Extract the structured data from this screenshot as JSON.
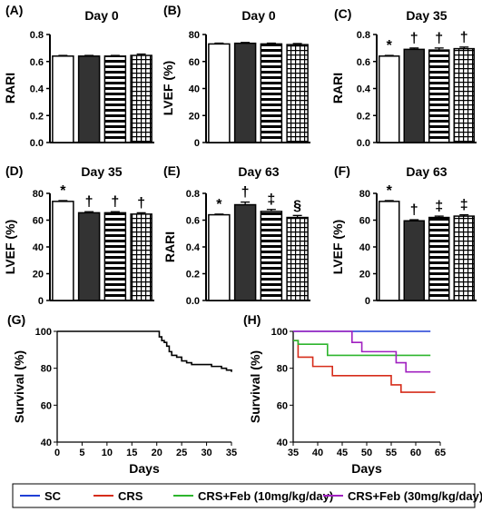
{
  "group_order": [
    "SC",
    "CRS",
    "CRS+Feb (10mg/kg/day)",
    "CRS+Feb (30mg/kg/day)"
  ],
  "group_fill_patterns": [
    "white",
    "dark",
    "horizontal-stripes",
    "grid"
  ],
  "bar_dark_color": "#333333",
  "chart_data": [
    {
      "type": "bar",
      "panel": "(A)",
      "title": "Day 0",
      "ylabel": "RARI",
      "ylim": [
        0,
        0.8
      ],
      "yticks": [
        "0.0",
        "0.2",
        "0.4",
        "0.6",
        "0.8"
      ],
      "values": [
        0.64,
        0.64,
        0.64,
        0.645
      ],
      "errors": [
        0.005,
        0.005,
        0.005,
        0.01
      ],
      "markers": [
        "",
        "",
        "",
        ""
      ]
    },
    {
      "type": "bar",
      "panel": "(B)",
      "title": "Day 0",
      "ylabel": "LVEF (%)",
      "ylim": [
        0,
        80
      ],
      "yticks": [
        "0",
        "20",
        "40",
        "60",
        "80"
      ],
      "values": [
        73,
        73.5,
        73,
        72.5
      ],
      "errors": [
        0.6,
        0.6,
        0.6,
        0.8
      ],
      "markers": [
        "",
        "",
        "",
        ""
      ]
    },
    {
      "type": "bar",
      "panel": "(C)",
      "title": "Day 35",
      "ylabel": "RARI",
      "ylim": [
        0,
        0.8
      ],
      "yticks": [
        "0.0",
        "0.2",
        "0.4",
        "0.6",
        "0.8"
      ],
      "values": [
        0.64,
        0.69,
        0.685,
        0.695
      ],
      "errors": [
        0.005,
        0.01,
        0.015,
        0.012
      ],
      "markers": [
        "*",
        "†",
        "†",
        "†"
      ]
    },
    {
      "type": "bar",
      "panel": "(D)",
      "title": "Day 35",
      "ylabel": "LVEF (%)",
      "ylim": [
        0,
        80
      ],
      "yticks": [
        "0",
        "20",
        "40",
        "60",
        "80"
      ],
      "values": [
        74,
        65.5,
        65.5,
        64.5
      ],
      "errors": [
        0.6,
        0.8,
        0.8,
        1.0
      ],
      "markers": [
        "*",
        "†",
        "†",
        "†"
      ]
    },
    {
      "type": "bar",
      "panel": "(E)",
      "title": "Day 63",
      "ylabel": "RARI",
      "ylim": [
        0,
        0.8
      ],
      "yticks": [
        "0.0",
        "0.2",
        "0.4",
        "0.6",
        "0.8"
      ],
      "values": [
        0.64,
        0.715,
        0.665,
        0.62
      ],
      "errors": [
        0.005,
        0.02,
        0.015,
        0.015
      ],
      "markers": [
        "*",
        "†",
        "‡",
        "§"
      ]
    },
    {
      "type": "bar",
      "panel": "(F)",
      "title": "Day 63",
      "ylabel": "LVEF (%)",
      "ylim": [
        0,
        80
      ],
      "yticks": [
        "0",
        "20",
        "40",
        "60",
        "80"
      ],
      "values": [
        74,
        59.5,
        62,
        63
      ],
      "errors": [
        0.6,
        0.8,
        1.0,
        1.0
      ],
      "markers": [
        "*",
        "†",
        "‡",
        "‡"
      ]
    },
    {
      "type": "line",
      "panel": "(G)",
      "title": "",
      "xlabel": "Days",
      "ylabel": "Survival (%)",
      "xlim": [
        0,
        35
      ],
      "ylim": [
        40,
        100
      ],
      "xticks": [
        "0",
        "5",
        "10",
        "15",
        "20",
        "25",
        "30",
        "35"
      ],
      "yticks": [
        "40",
        "60",
        "80",
        "100"
      ],
      "series": [
        {
          "step": true,
          "x": [
            0,
            20,
            20.5,
            21,
            21.5,
            22,
            22.5,
            23,
            24,
            25,
            26,
            27,
            28,
            31,
            33,
            34,
            35
          ],
          "y": [
            100,
            100,
            97,
            95,
            94,
            92,
            89,
            87,
            86,
            84,
            83,
            82,
            82,
            81,
            80,
            79,
            78
          ]
        }
      ]
    },
    {
      "type": "line",
      "panel": "(H)",
      "title": "",
      "xlabel": "Days",
      "ylabel": "Survival (%)",
      "xlim": [
        35,
        65
      ],
      "ylim": [
        40,
        100
      ],
      "xticks": [
        "35",
        "40",
        "45",
        "50",
        "55",
        "60",
        "65"
      ],
      "yticks": [
        "40",
        "60",
        "80",
        "100"
      ],
      "series": [
        {
          "name": "SC",
          "color": "#1f3fd6",
          "step": true,
          "x": [
            35,
            63
          ],
          "y": [
            100,
            100
          ]
        },
        {
          "name": "CRS",
          "color": "#d62c1a",
          "step": true,
          "x": [
            35,
            36,
            39,
            43,
            55,
            57,
            64
          ],
          "y": [
            95,
            86,
            81,
            76,
            71,
            67,
            67
          ]
        },
        {
          "name": "CRS+Feb (10mg/kg/day)",
          "color": "#2db52d",
          "step": true,
          "x": [
            35,
            36,
            42,
            56,
            63
          ],
          "y": [
            95,
            93,
            87,
            87,
            87
          ]
        },
        {
          "name": "CRS+Feb (30mg/kg/day)",
          "color": "#a020c0",
          "step": true,
          "x": [
            35,
            47,
            49,
            56,
            58,
            63
          ],
          "y": [
            100,
            94,
            89,
            83,
            78,
            78
          ]
        }
      ]
    }
  ],
  "legend": {
    "items": [
      {
        "label": "SC",
        "color": "#1f3fd6"
      },
      {
        "label": "CRS",
        "color": "#d62c1a"
      },
      {
        "label": "CRS+Feb (10mg/kg/day)",
        "color": "#2db52d"
      },
      {
        "label": "CRS+Feb (30mg/kg/day)",
        "color": "#a020c0"
      }
    ]
  }
}
